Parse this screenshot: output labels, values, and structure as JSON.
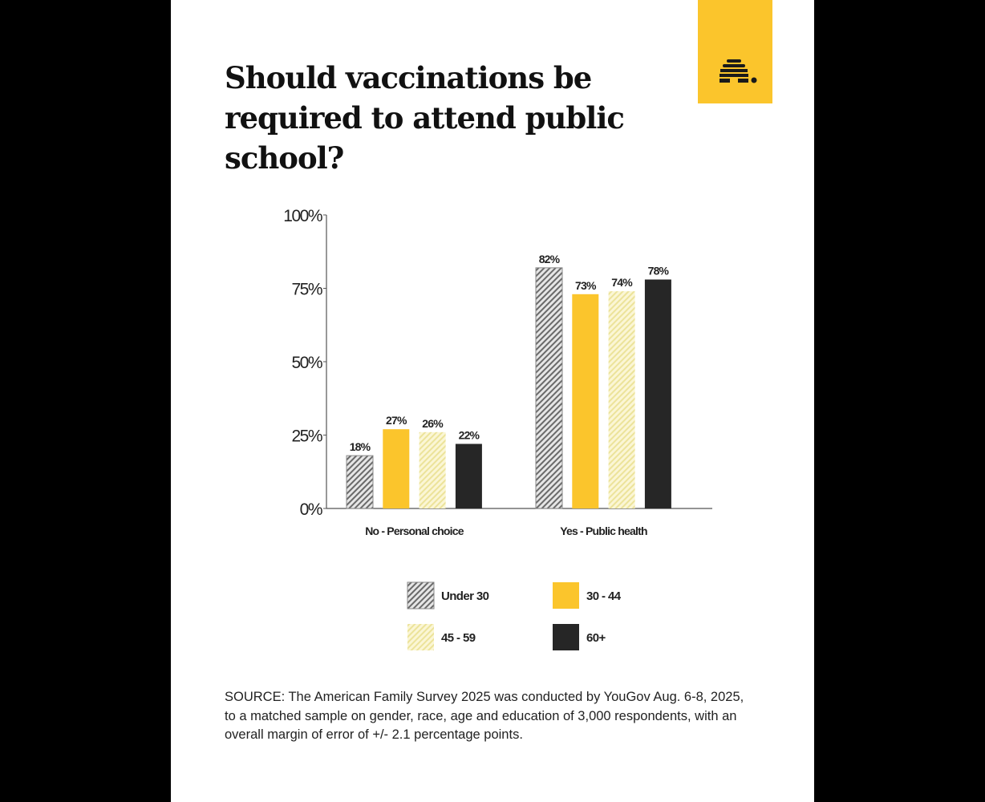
{
  "title": "Should vaccinations be required to attend public school?",
  "source": "SOURCE: The American Family Survey 2025 was conducted by YouGov Aug. 6-8, 2025, to a matched sample on gender, race, age and education of 3,000 respondents, with an overall margin of error of +/- 2.1 percentage points.",
  "logo": {
    "icon": "beehive-icon",
    "color": "#fbc52c"
  },
  "chart_data": {
    "type": "bar",
    "title": "Should vaccinations be required to attend public school?",
    "categories": [
      "No - Personal choice",
      "Yes - Public health"
    ],
    "series": [
      {
        "name": "Under 30",
        "values": [
          18,
          82
        ],
        "fill": "hatch-gray"
      },
      {
        "name": "30 - 44",
        "values": [
          27,
          73
        ],
        "fill": "#fbc52c"
      },
      {
        "name": "45 - 59",
        "values": [
          26,
          74
        ],
        "fill": "hatch-yellow"
      },
      {
        "name": "60+",
        "values": [
          22,
          78
        ],
        "fill": "#262626"
      }
    ],
    "data_labels": [
      [
        "18%",
        "82%"
      ],
      [
        "27%",
        "73%"
      ],
      [
        "26%",
        "74%"
      ],
      [
        "22%",
        "78%"
      ]
    ],
    "yticks": [
      "0%",
      "25%",
      "50%",
      "75%",
      "100%"
    ],
    "ylim": [
      0,
      100
    ],
    "grid": false,
    "legend_position": "bottom"
  }
}
